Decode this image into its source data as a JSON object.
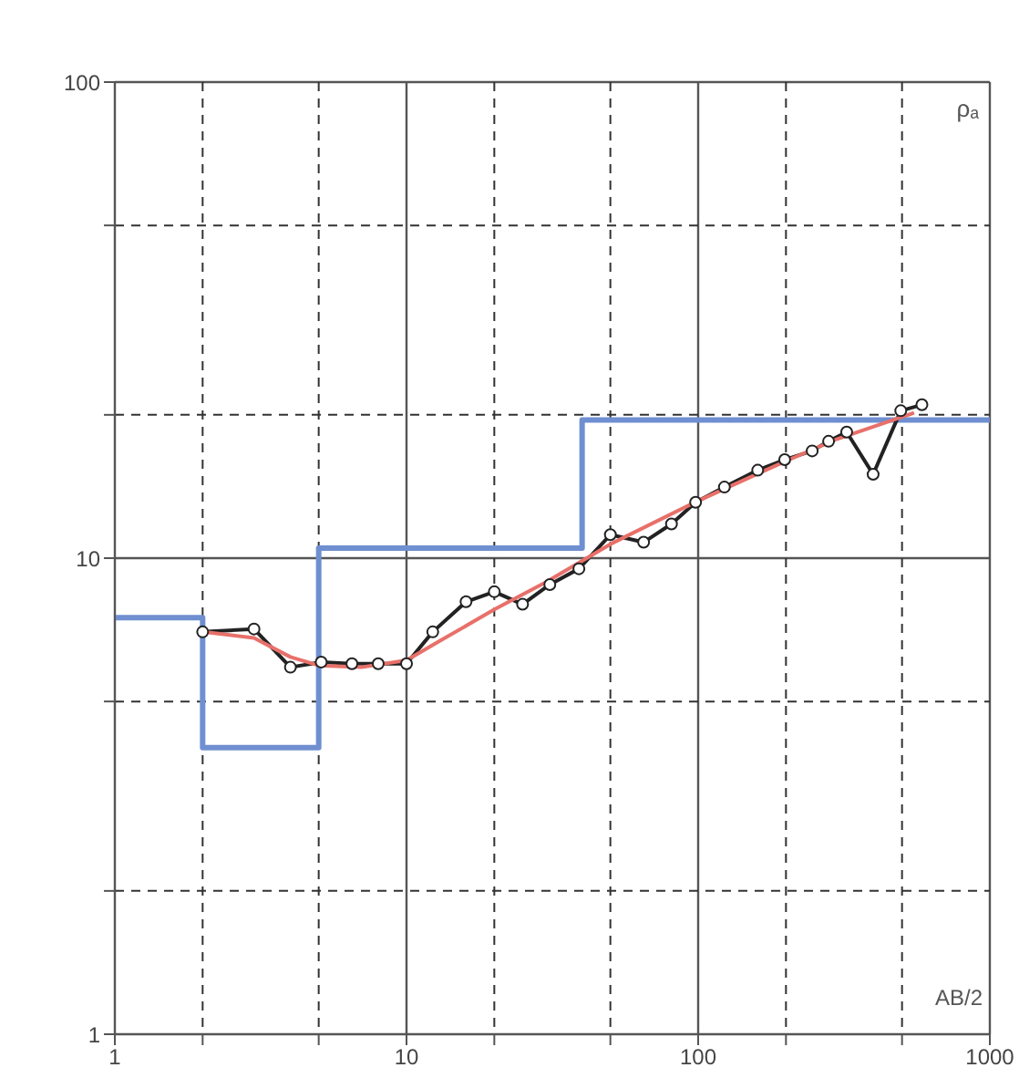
{
  "chart_data": {
    "type": "line",
    "xlabel": "AB/2",
    "ylabel": "ρₐ",
    "log": "xy",
    "grid": true,
    "xlim": [
      1,
      1000
    ],
    "ylim": [
      1,
      100
    ],
    "xticks": [
      1,
      {
        "value": 2,
        "label": null
      },
      {
        "value": 5,
        "label": null
      },
      10,
      {
        "value": 20,
        "label": null
      },
      {
        "value": 50,
        "label": null
      },
      100,
      {
        "value": 200,
        "label": null
      },
      {
        "value": 500,
        "label": null
      },
      1000
    ],
    "yticks": [
      1,
      {
        "value": 2,
        "label": null
      },
      {
        "value": 5,
        "label": null
      },
      10,
      {
        "value": 20,
        "label": null
      },
      {
        "value": 50,
        "label": null
      },
      100
    ],
    "series": [
      {
        "type": "step",
        "color": "#6f8fd0",
        "marker": "none",
        "x": [
          1,
          2,
          5,
          40,
          1000
        ],
        "values": [
          7.5,
          4.0,
          10.5,
          19.5,
          19.5
        ]
      },
      {
        "color": "#222222",
        "marker": "circle",
        "x": [
          2,
          3,
          4,
          5.1,
          6.5,
          8,
          10,
          12.3,
          16,
          20,
          25,
          31,
          39,
          50,
          65,
          81,
          98,
          123,
          160,
          198,
          246,
          280,
          323,
          398,
          495,
          585
        ],
        "values": [
          7.0,
          7.1,
          5.9,
          6.05,
          6.0,
          6.0,
          6.0,
          7.0,
          8.1,
          8.5,
          8.0,
          8.8,
          9.5,
          11.2,
          10.8,
          11.8,
          13.1,
          14.1,
          15.3,
          16.1,
          16.8,
          17.6,
          18.4,
          15.0,
          20.4,
          21
        ]
      },
      {
        "color": "#e8706a",
        "marker": "none",
        "x": [
          2,
          3,
          4,
          5,
          7,
          10,
          13,
          20,
          30,
          50,
          100,
          200,
          300,
          550
        ],
        "values": [
          7.0,
          6.8,
          6.2,
          5.95,
          5.9,
          6.1,
          6.7,
          7.8,
          8.9,
          10.7,
          13.2,
          16.0,
          17.8,
          20.2
        ]
      }
    ]
  }
}
